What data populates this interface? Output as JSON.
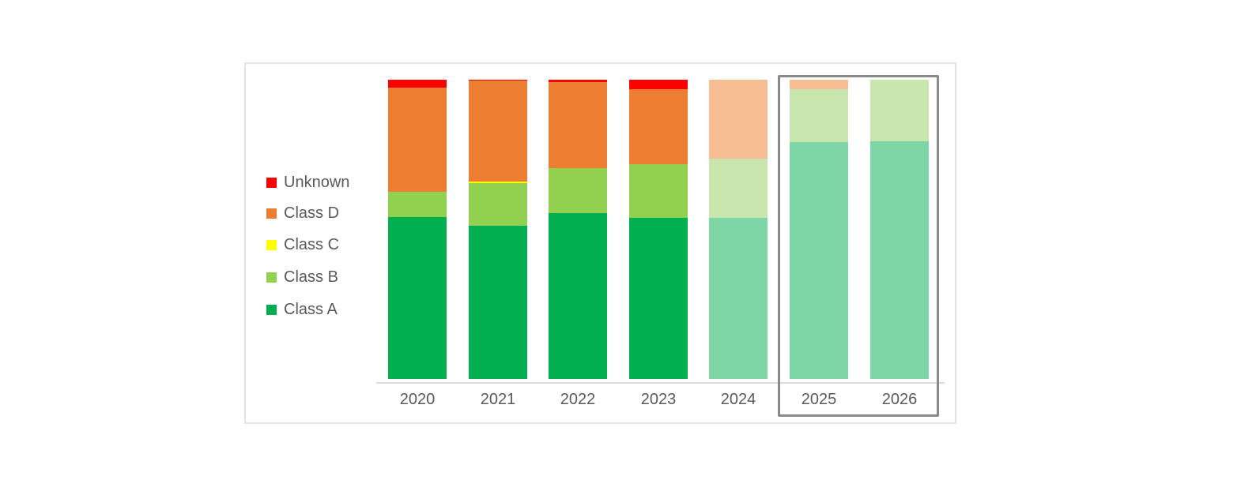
{
  "chart_data": {
    "type": "bar",
    "subtype": "stacked-100-percent-column",
    "title": "",
    "xlabel": "",
    "ylabel": "",
    "ylim": [
      0,
      100
    ],
    "grid": false,
    "value_axis_labels_visible": false,
    "axis_line_color": "#d9d9d9",
    "categories": [
      "2020",
      "2021",
      "2022",
      "2023",
      "2024",
      "2025",
      "2026"
    ],
    "series": [
      {
        "name": "Class A",
        "color": "#00B050",
        "muted_color": "#7ED6A6",
        "values": [
          54.1,
          51.2,
          55.4,
          53.8,
          53.8,
          79.2,
          79.4
        ]
      },
      {
        "name": "Class B",
        "color": "#92D050",
        "muted_color": "#C9E6AE",
        "values": [
          8.4,
          14.2,
          15.0,
          17.9,
          19.8,
          17.7,
          20.6
        ]
      },
      {
        "name": "Class C",
        "color": "#FFFF00",
        "muted_color": "#FFF6B0",
        "values": [
          0,
          0.5,
          0,
          0,
          0,
          0,
          0
        ]
      },
      {
        "name": "Class D",
        "color": "#ED7D31",
        "muted_color": "#F6BD92",
        "values": [
          34.8,
          33.8,
          28.8,
          25.1,
          26.4,
          3.1,
          0
        ]
      },
      {
        "name": "Unknown",
        "color": "#FF0000",
        "muted_color": "#FFA4A4",
        "values": [
          2.7,
          0.3,
          0.8,
          3.2,
          0,
          0,
          0
        ]
      }
    ],
    "muted_categories": [
      "2024",
      "2025",
      "2026"
    ],
    "highlight_box": {
      "categories": [
        "2025",
        "2026"
      ],
      "border_color": "#8a8a8a"
    },
    "legend": {
      "position": "left",
      "text_color": "#595959",
      "entries": [
        {
          "label": "Unknown",
          "color": "#FF0000"
        },
        {
          "label": "Class D",
          "color": "#ED7D31"
        },
        {
          "label": "Class C",
          "color": "#FFFF00"
        },
        {
          "label": "Class B",
          "color": "#92D050"
        },
        {
          "label": "Class A",
          "color": "#00B050"
        }
      ]
    }
  }
}
